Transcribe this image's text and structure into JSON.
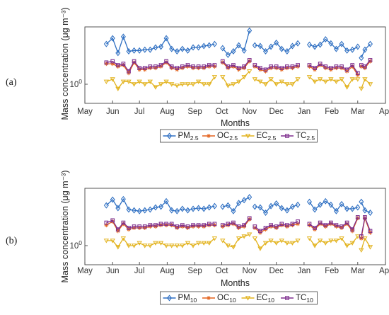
{
  "panels": [
    "(a)",
    "(b)"
  ],
  "chart_data": [
    {
      "type": "line",
      "panel_label": "(a)",
      "xlabel": "Months",
      "ylabel": "Mass concentration (μg m⁻³)",
      "y_scale": "log",
      "ylim": [
        0.5,
        8
      ],
      "y_ticks": [
        {
          "value": 1,
          "label": "10^0"
        }
      ],
      "xlim": [
        "2019-05-01",
        "2020-04-01"
      ],
      "x_ticks": [
        "May",
        "Jun",
        "Jul",
        "Aug",
        "Sep",
        "Oct",
        "Nov",
        "Dec",
        "Jan",
        "Feb",
        "Mar",
        "Apr"
      ],
      "grid": false,
      "legend_position": "bottom",
      "x": [
        "2019-05-25",
        "2019-06-01",
        "2019-06-07",
        "2019-06-13",
        "2019-06-19",
        "2019-06-25",
        "2019-07-01",
        "2019-07-07",
        "2019-07-13",
        "2019-07-19",
        "2019-07-25",
        "2019-07-31",
        "2019-08-06",
        "2019-08-12",
        "2019-08-18",
        "2019-08-24",
        "2019-08-30",
        "2019-09-05",
        "2019-09-11",
        "2019-09-17",
        "2019-09-23",
        null,
        "2019-10-02",
        "2019-10-08",
        "2019-10-14",
        "2019-10-20",
        "2019-10-26",
        "2019-11-01",
        null,
        "2019-11-07",
        "2019-11-13",
        "2019-11-19",
        "2019-11-25",
        "2019-12-01",
        "2019-12-07",
        "2019-12-13",
        "2019-12-19",
        "2019-12-25",
        null,
        "2020-01-07",
        "2020-01-13",
        "2020-01-19",
        "2020-01-25",
        "2020-01-31",
        "2020-02-06",
        "2020-02-12",
        "2020-02-18",
        "2020-02-24",
        "2020-03-01",
        null,
        "2020-03-05",
        "2020-03-09",
        "2020-03-15"
      ],
      "series": [
        {
          "name": "PM<sub>2.5</sub>",
          "color": "#2e6fc2",
          "marker": "diamond",
          "values": [
            4.3,
            5.3,
            3.1,
            5.6,
            3.3,
            3.4,
            3.4,
            3.5,
            3.5,
            3.8,
            3.9,
            5.3,
            3.6,
            3.3,
            3.6,
            3.4,
            3.8,
            3.8,
            4.0,
            4.1,
            4.3,
            null,
            3.7,
            2.9,
            3.3,
            4.1,
            3.4,
            7.0,
            null,
            4.1,
            4.0,
            3.3,
            3.9,
            4.5,
            3.6,
            3.3,
            4.0,
            4.4,
            null,
            4.2,
            3.9,
            4.2,
            5.1,
            4.4,
            3.6,
            4.3,
            3.4,
            3.5,
            3.9,
            null,
            2.6,
            3.5,
            4.3
          ]
        },
        {
          "name": "OC<sub>2.5</sub>",
          "color": "#e3611b",
          "marker": "star",
          "values": [
            2.1,
            2.1,
            1.9,
            2.0,
            1.5,
            2.2,
            1.7,
            1.7,
            1.8,
            1.8,
            1.9,
            2.2,
            1.8,
            1.7,
            1.8,
            1.9,
            1.8,
            1.8,
            1.8,
            1.9,
            1.9,
            null,
            2.2,
            1.8,
            1.9,
            1.7,
            1.8,
            2.3,
            null,
            1.9,
            1.7,
            1.6,
            1.8,
            1.8,
            1.7,
            1.8,
            1.8,
            1.9,
            null,
            1.9,
            1.7,
            2.0,
            1.8,
            1.7,
            1.8,
            1.8,
            1.6,
            1.9,
            1.4,
            null,
            1.9,
            1.8,
            2.3
          ]
        },
        {
          "name": "EC<sub>2.5</sub>",
          "color": "#e2b21c",
          "marker": "triangle",
          "values": [
            1.1,
            1.2,
            0.85,
            1.1,
            1.1,
            1.0,
            1.1,
            1.0,
            1.1,
            0.9,
            1.0,
            1.1,
            1.0,
            0.95,
            1.0,
            1.0,
            1.0,
            1.1,
            1.0,
            1.0,
            1.3,
            null,
            1.3,
            0.95,
            1.0,
            1.1,
            1.3,
            1.6,
            null,
            1.2,
            1.1,
            1.0,
            1.2,
            1.0,
            1.1,
            1.0,
            1.0,
            1.2,
            null,
            1.3,
            1.1,
            1.2,
            1.1,
            1.2,
            1.1,
            1.2,
            0.9,
            1.2,
            1.2,
            null,
            0.85,
            1.2,
            1.0
          ]
        },
        {
          "name": "TC<sub>2.5</sub>",
          "color": "#7e2f8e",
          "marker": "square",
          "values": [
            2.2,
            2.3,
            2.0,
            2.1,
            1.6,
            2.3,
            1.8,
            1.8,
            1.9,
            1.9,
            2.0,
            2.3,
            1.9,
            1.8,
            1.9,
            2.0,
            1.9,
            1.9,
            1.9,
            2.0,
            2.0,
            null,
            2.3,
            1.9,
            2.0,
            1.8,
            1.9,
            2.4,
            null,
            2.0,
            1.8,
            1.7,
            1.9,
            1.9,
            1.8,
            1.9,
            1.9,
            2.0,
            null,
            2.0,
            1.8,
            2.1,
            1.9,
            1.8,
            1.9,
            1.9,
            1.7,
            2.0,
            1.5,
            null,
            2.0,
            1.9,
            2.4
          ]
        }
      ]
    },
    {
      "type": "line",
      "panel_label": "(b)",
      "xlabel": "Months",
      "ylabel": "Mass concentration (μg m⁻³)",
      "y_scale": "log",
      "ylim": [
        0.5,
        8
      ],
      "y_ticks": [
        {
          "value": 1,
          "label": "10^0"
        }
      ],
      "xlim": [
        "2019-05-01",
        "2020-04-01"
      ],
      "x_ticks": [
        "May",
        "Jun",
        "Jul",
        "Aug",
        "Sep",
        "Oct",
        "Nov",
        "Dec",
        "Jan",
        "Feb",
        "Mar",
        "Apr"
      ],
      "grid": false,
      "legend_position": "bottom",
      "x": [
        "2019-05-25",
        "2019-06-01",
        "2019-06-07",
        "2019-06-13",
        "2019-06-19",
        "2019-06-25",
        "2019-07-01",
        "2019-07-07",
        "2019-07-13",
        "2019-07-19",
        "2019-07-25",
        "2019-07-31",
        "2019-08-06",
        "2019-08-12",
        "2019-08-18",
        "2019-08-24",
        "2019-08-30",
        "2019-09-05",
        "2019-09-11",
        "2019-09-17",
        "2019-09-23",
        null,
        "2019-10-02",
        "2019-10-08",
        "2019-10-14",
        "2019-10-20",
        "2019-10-26",
        "2019-11-01",
        null,
        "2019-11-07",
        "2019-11-13",
        "2019-11-19",
        "2019-11-25",
        "2019-12-01",
        "2019-12-07",
        "2019-12-13",
        "2019-12-19",
        "2019-12-25",
        null,
        "2020-01-07",
        "2020-01-13",
        "2020-01-19",
        "2020-01-25",
        "2020-01-31",
        "2020-02-06",
        "2020-02-12",
        "2020-02-18",
        "2020-02-24",
        "2020-03-01",
        null,
        "2020-03-05",
        "2020-03-09",
        "2020-03-15"
      ],
      "series": [
        {
          "name": "PM<sub>10</sub>",
          "color": "#2e6fc2",
          "marker": "diamond",
          "values": [
            4.3,
            5.3,
            3.9,
            5.4,
            3.7,
            3.6,
            3.5,
            3.6,
            3.7,
            4.0,
            4.1,
            5.0,
            3.6,
            3.5,
            3.8,
            3.6,
            3.8,
            3.9,
            3.8,
            4.0,
            4.2,
            null,
            4.1,
            4.3,
            3.5,
            4.7,
            5.2,
            5.8,
            null,
            4.1,
            4.0,
            3.3,
            4.2,
            4.6,
            3.9,
            3.6,
            4.1,
            4.4,
            null,
            4.9,
            3.7,
            4.4,
            5.0,
            4.4,
            3.5,
            4.5,
            3.8,
            3.8,
            4.0,
            null,
            4.9,
            3.6,
            3.3
          ]
        },
        {
          "name": "OC<sub>10</sub>",
          "color": "#e3611b",
          "marker": "star",
          "values": [
            2.1,
            2.4,
            1.7,
            2.2,
            1.8,
            1.9,
            1.9,
            1.9,
            2.0,
            2.0,
            2.1,
            2.1,
            2.1,
            1.9,
            2.0,
            1.9,
            2.0,
            2.0,
            2.0,
            2.1,
            2.1,
            null,
            2.0,
            2.1,
            2.2,
            1.9,
            2.0,
            2.6,
            null,
            1.9,
            1.6,
            1.8,
            2.0,
            1.9,
            2.1,
            2.0,
            2.1,
            2.2,
            null,
            2.1,
            1.8,
            2.2,
            2.0,
            2.2,
            2.0,
            1.9,
            2.2,
            1.7,
            2.7,
            null,
            1.3,
            2.7,
            1.6
          ]
        },
        {
          "name": "EC<sub>10</sub>",
          "color": "#e2b21c",
          "marker": "triangle",
          "values": [
            1.2,
            1.2,
            0.95,
            1.3,
            1.0,
            1.0,
            1.1,
            1.0,
            1.0,
            1.1,
            1.1,
            1.0,
            1.0,
            1.0,
            1.0,
            1.1,
            1.0,
            1.1,
            1.1,
            1.1,
            1.3,
            null,
            1.2,
            1.0,
            0.95,
            1.3,
            1.4,
            1.5,
            null,
            1.3,
            0.9,
            1.1,
            1.2,
            1.1,
            1.2,
            1.1,
            1.1,
            1.2,
            null,
            1.3,
            1.0,
            1.2,
            1.1,
            1.2,
            1.2,
            1.3,
            1.0,
            1.1,
            1.4,
            null,
            0.85,
            1.3,
            0.95
          ]
        },
        {
          "name": "TC<sub>10</sub>",
          "color": "#7e2f8e",
          "marker": "square",
          "values": [
            2.3,
            2.5,
            1.8,
            2.3,
            1.9,
            2.0,
            2.0,
            2.0,
            2.1,
            2.1,
            2.2,
            2.2,
            2.2,
            2.0,
            2.1,
            2.0,
            2.1,
            2.1,
            2.1,
            2.2,
            2.2,
            null,
            2.1,
            2.2,
            2.3,
            2.0,
            2.1,
            2.7,
            null,
            2.0,
            1.7,
            1.9,
            2.1,
            2.0,
            2.2,
            2.1,
            2.2,
            2.4,
            null,
            2.2,
            1.9,
            2.3,
            2.1,
            2.3,
            2.1,
            2.0,
            2.3,
            1.8,
            2.8,
            null,
            1.4,
            2.8,
            1.7
          ]
        }
      ]
    }
  ]
}
